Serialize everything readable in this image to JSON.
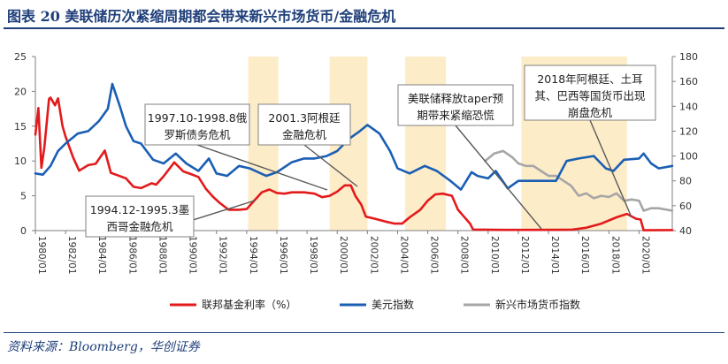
{
  "header": {
    "title": "图表 20    美联储历次紧缩周期都会带来新兴市场货币/金融危机"
  },
  "footer": {
    "source": "资料来源：Bloomberg，华创证券"
  },
  "chart_data": {
    "type": "line",
    "x_ticks": [
      "1980/01",
      "1982/01",
      "1984/01",
      "1986/01",
      "1988/01",
      "1990/01",
      "1992/01",
      "1994/01",
      "1996/01",
      "1998/01",
      "2000/01",
      "2002/01",
      "2004/01",
      "2006/01",
      "2008/01",
      "2010/01",
      "2012/01",
      "2014/01",
      "2016/01",
      "2018/01",
      "2020/01"
    ],
    "x_range": [
      1980.0,
      2022.2
    ],
    "y_left": {
      "ticks": [
        0,
        5,
        10,
        15,
        20,
        25
      ],
      "lim": [
        0,
        25
      ]
    },
    "y_right": {
      "ticks": [
        40,
        60,
        80,
        100,
        120,
        140,
        160,
        180
      ],
      "lim": [
        40,
        180
      ]
    },
    "shaded_periods": [
      [
        1994.1,
        1996.1
      ],
      [
        1999.5,
        2002.0
      ],
      [
        2004.5,
        2007.2
      ],
      [
        2012.2,
        2019.2
      ]
    ],
    "colors": {
      "fed_rate": "#e31a1c",
      "usd_index": "#1a5fb4",
      "em_fx": "#a6a6a6",
      "shade": "#fdecc8"
    },
    "series": [
      {
        "name": "联邦基金利率（%）",
        "axis": "left",
        "x": [
          1980.0,
          1980.2,
          1980.4,
          1980.6,
          1980.9,
          1981.0,
          1981.3,
          1981.5,
          1981.8,
          1982.0,
          1982.5,
          1982.9,
          1983.5,
          1984.0,
          1984.6,
          1985.0,
          1985.5,
          1986.0,
          1986.5,
          1987.0,
          1987.7,
          1988.0,
          1988.5,
          1989.2,
          1989.8,
          1990.2,
          1990.8,
          1991.3,
          1991.8,
          1992.2,
          1992.8,
          1993.5,
          1994.0,
          1994.5,
          1995.0,
          1995.5,
          1996.0,
          1996.5,
          1997.0,
          1997.8,
          1998.5,
          1999.0,
          1999.5,
          2000.0,
          2000.5,
          2000.9,
          2001.2,
          2001.6,
          2001.9,
          2002.5,
          2003.2,
          2003.8,
          2004.3,
          2004.8,
          2005.5,
          2006.0,
          2006.5,
          2007.0,
          2007.6,
          2008.0,
          2008.4,
          2008.8,
          2009.0,
          2011.0,
          2013.0,
          2015.5,
          2016.5,
          2017.5,
          2018.5,
          2019.2,
          2019.8,
          2020.1,
          2020.3,
          2022.2
        ],
        "values": [
          13.8,
          17.6,
          9.0,
          12.0,
          18.9,
          19.1,
          18.0,
          19.0,
          15.0,
          13.5,
          10.5,
          8.6,
          9.4,
          9.6,
          11.5,
          8.3,
          7.9,
          7.5,
          6.3,
          6.1,
          6.8,
          6.6,
          7.8,
          9.8,
          8.5,
          8.2,
          7.7,
          6.0,
          4.8,
          4.0,
          3.0,
          3.0,
          3.1,
          4.3,
          5.5,
          5.9,
          5.4,
          5.3,
          5.5,
          5.5,
          5.3,
          4.8,
          5.0,
          5.6,
          6.5,
          6.5,
          5.0,
          3.7,
          2.0,
          1.7,
          1.3,
          1.0,
          1.0,
          1.9,
          3.0,
          4.3,
          5.2,
          5.3,
          5.0,
          3.0,
          2.0,
          1.0,
          0.15,
          0.1,
          0.1,
          0.13,
          0.4,
          1.0,
          1.9,
          2.4,
          1.7,
          1.6,
          0.05,
          0.08
        ]
      },
      {
        "name": "美元指数",
        "axis": "right",
        "x": [
          1980.0,
          1980.5,
          1981.0,
          1981.5,
          1982.0,
          1982.8,
          1983.5,
          1984.2,
          1984.8,
          1985.1,
          1985.6,
          1986.0,
          1986.5,
          1987.0,
          1987.8,
          1988.5,
          1989.3,
          1990.0,
          1990.8,
          1991.5,
          1992.0,
          1992.7,
          1993.5,
          1994.2,
          1995.3,
          1996.0,
          1997.0,
          1997.8,
          1998.5,
          1999.3,
          2000.0,
          2000.8,
          2001.5,
          2002.0,
          2002.8,
          2003.5,
          2004.0,
          2004.8,
          2005.8,
          2006.6,
          2007.5,
          2008.2,
          2008.9,
          2009.3,
          2010.0,
          2010.5,
          2011.3,
          2012.0,
          2012.8,
          2013.5,
          2014.0,
          2014.5,
          2015.2,
          2016.0,
          2017.0,
          2017.8,
          2018.3,
          2019.0,
          2020.0,
          2020.3,
          2020.8,
          2021.3,
          2022.2
        ],
        "values": [
          86,
          85,
          92,
          104,
          110,
          118,
          120,
          128,
          138,
          158,
          140,
          124,
          112,
          110,
          97,
          94,
          102,
          94,
          88,
          98,
          86,
          84,
          92,
          90,
          84,
          87,
          95,
          98,
          98,
          100,
          104,
          114,
          120,
          125,
          118,
          104,
          90,
          86,
          92,
          88,
          80,
          73,
          87,
          84,
          82,
          88,
          74,
          80,
          80,
          80,
          80,
          80,
          96,
          98,
          100,
          90,
          88,
          97,
          98,
          102,
          94,
          90,
          92
        ]
      },
      {
        "name": "新兴市场货币指数",
        "axis": "right",
        "x": [
          2009.8,
          2010.4,
          2011.0,
          2011.6,
          2012.0,
          2012.5,
          2013.0,
          2013.5,
          2014.0,
          2014.5,
          2015.0,
          2015.5,
          2016.0,
          2016.5,
          2017.0,
          2017.5,
          2018.0,
          2018.5,
          2019.0,
          2019.5,
          2020.0,
          2020.3,
          2020.8,
          2021.3,
          2022.2
        ],
        "values": [
          96,
          102,
          104,
          99,
          94,
          92,
          92,
          88,
          84,
          84,
          80,
          76,
          68,
          70,
          66,
          68,
          67,
          70,
          64,
          65,
          64,
          56,
          58,
          58,
          56
        ]
      }
    ]
  }
}
